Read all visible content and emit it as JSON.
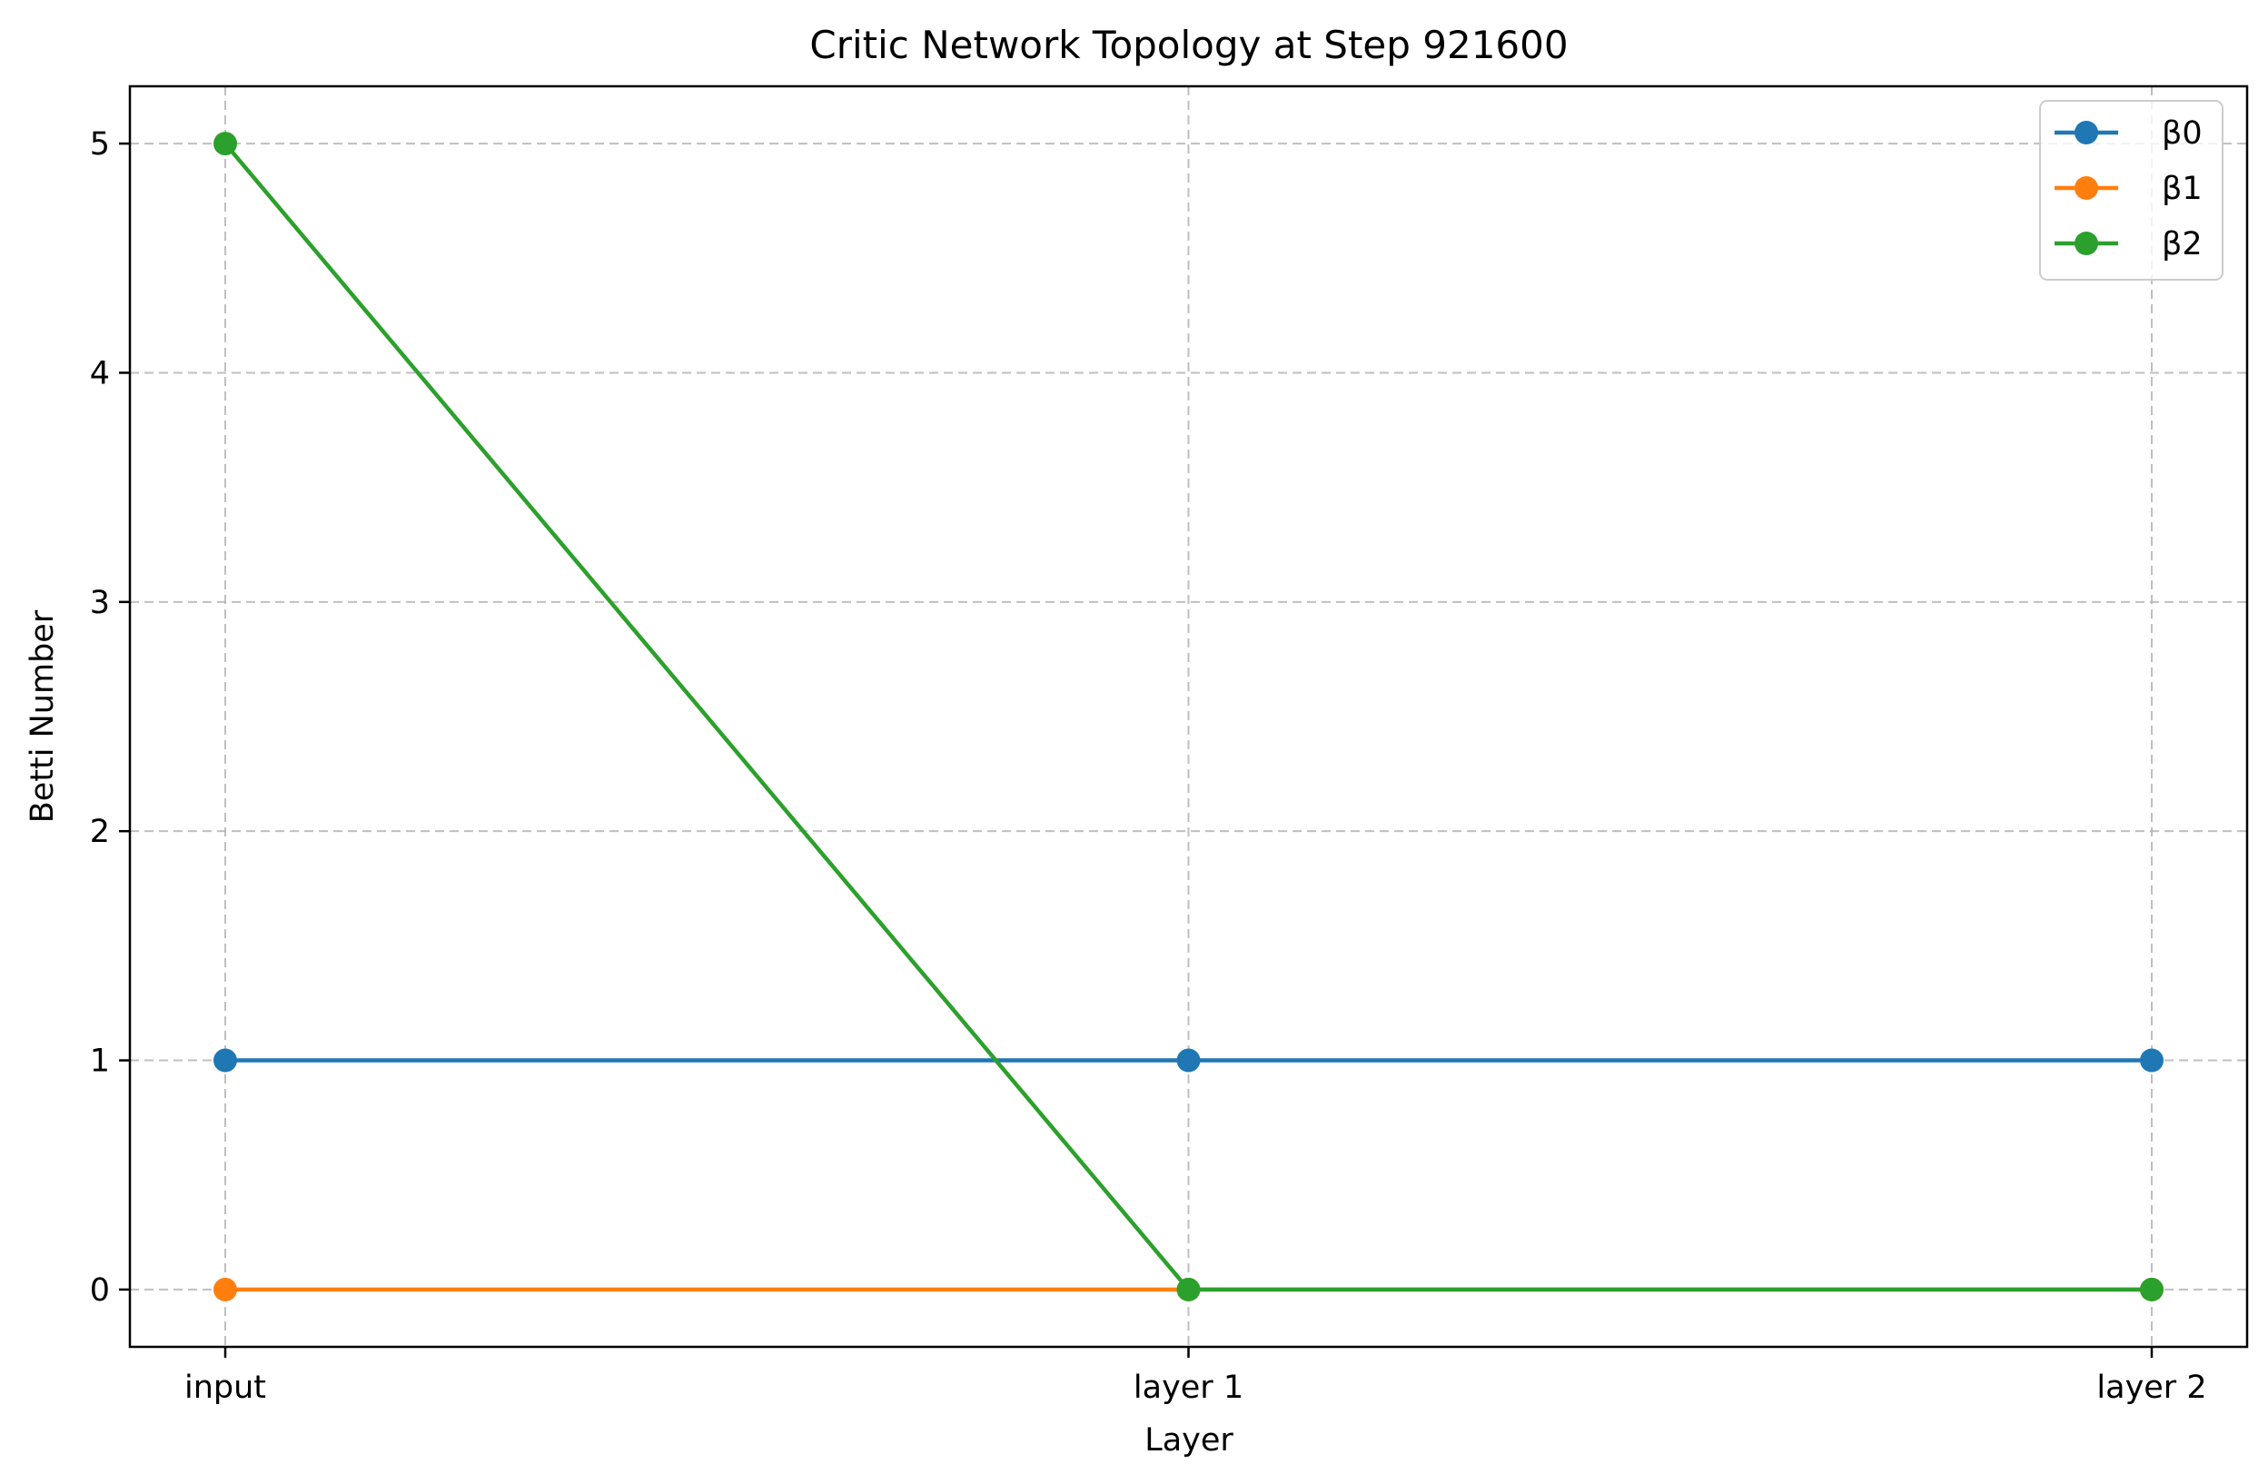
{
  "chart_data": {
    "type": "line",
    "title": "Critic Network Topology at Step 921600",
    "xlabel": "Layer",
    "ylabel": "Betti Number",
    "categories": [
      "input",
      "layer 1",
      "layer 2"
    ],
    "y_ticks": [
      "0",
      "1",
      "2",
      "3",
      "4",
      "5"
    ],
    "ylim": [
      -0.25,
      5.25
    ],
    "grid": true,
    "legend_position": "top-right",
    "series": [
      {
        "name": "β0",
        "color": "#1f77b4",
        "values": [
          1,
          1,
          1
        ]
      },
      {
        "name": "β1",
        "color": "#ff7f0e",
        "values": [
          0,
          0,
          0
        ]
      },
      {
        "name": "β2",
        "color": "#2ca02c",
        "values": [
          5,
          0,
          0
        ]
      }
    ]
  }
}
